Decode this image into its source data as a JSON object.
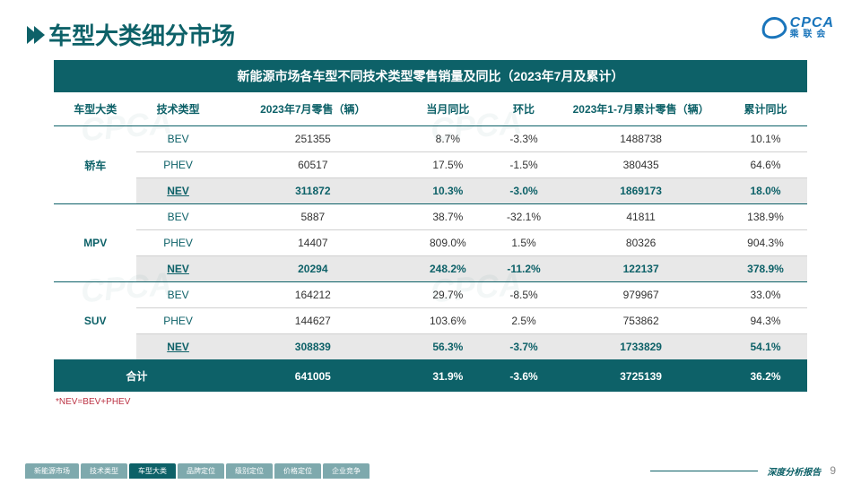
{
  "title": "车型大类细分市场",
  "logo": {
    "abbr": "CPCA",
    "cn": "乘 联 会"
  },
  "banner": "新能源市场各车型不同技术类型零售销量及同比（2023年7月及累计）",
  "columns": [
    "车型大类",
    "技术类型",
    "2023年7月零售（辆）",
    "当月同比",
    "环比",
    "2023年1-7月累计零售（辆）",
    "累计同比"
  ],
  "groups": [
    {
      "cat": "轿车",
      "rows": [
        {
          "tech": "BEV",
          "v": [
            "251355",
            "8.7%",
            "-3.3%",
            "1488738",
            "10.1%"
          ],
          "nev": false
        },
        {
          "tech": "PHEV",
          "v": [
            "60517",
            "17.5%",
            "-1.5%",
            "380435",
            "64.6%"
          ],
          "nev": false
        },
        {
          "tech": "NEV",
          "v": [
            "311872",
            "10.3%",
            "-3.0%",
            "1869173",
            "18.0%"
          ],
          "nev": true
        }
      ]
    },
    {
      "cat": "MPV",
      "rows": [
        {
          "tech": "BEV",
          "v": [
            "5887",
            "38.7%",
            "-32.1%",
            "41811",
            "138.9%"
          ],
          "nev": false
        },
        {
          "tech": "PHEV",
          "v": [
            "14407",
            "809.0%",
            "1.5%",
            "80326",
            "904.3%"
          ],
          "nev": false
        },
        {
          "tech": "NEV",
          "v": [
            "20294",
            "248.2%",
            "-11.2%",
            "122137",
            "378.9%"
          ],
          "nev": true
        }
      ]
    },
    {
      "cat": "SUV",
      "rows": [
        {
          "tech": "BEV",
          "v": [
            "164212",
            "29.7%",
            "-8.5%",
            "979967",
            "33.0%"
          ],
          "nev": false
        },
        {
          "tech": "PHEV",
          "v": [
            "144627",
            "103.6%",
            "2.5%",
            "753862",
            "94.3%"
          ],
          "nev": false
        },
        {
          "tech": "NEV",
          "v": [
            "308839",
            "56.3%",
            "-3.7%",
            "1733829",
            "54.1%"
          ],
          "nev": true
        }
      ]
    }
  ],
  "total": {
    "label": "合计",
    "v": [
      "641005",
      "31.9%",
      "-3.6%",
      "3725139",
      "36.2%"
    ]
  },
  "footnote": "*NEV=BEV+PHEV",
  "tabs": [
    "新能源市场",
    "技术类型",
    "车型大类",
    "品牌定位",
    "级别定位",
    "价格定位",
    "企业竞争"
  ],
  "active_tab": 2,
  "footer_label": "深度分析报告",
  "page": "9",
  "colors": {
    "primary": "#0d6168",
    "nev_bg": "#e8e8e8",
    "footnote": "#bb3344",
    "tab_inactive": "#7ea9ad",
    "logo": "#1a75bb"
  }
}
